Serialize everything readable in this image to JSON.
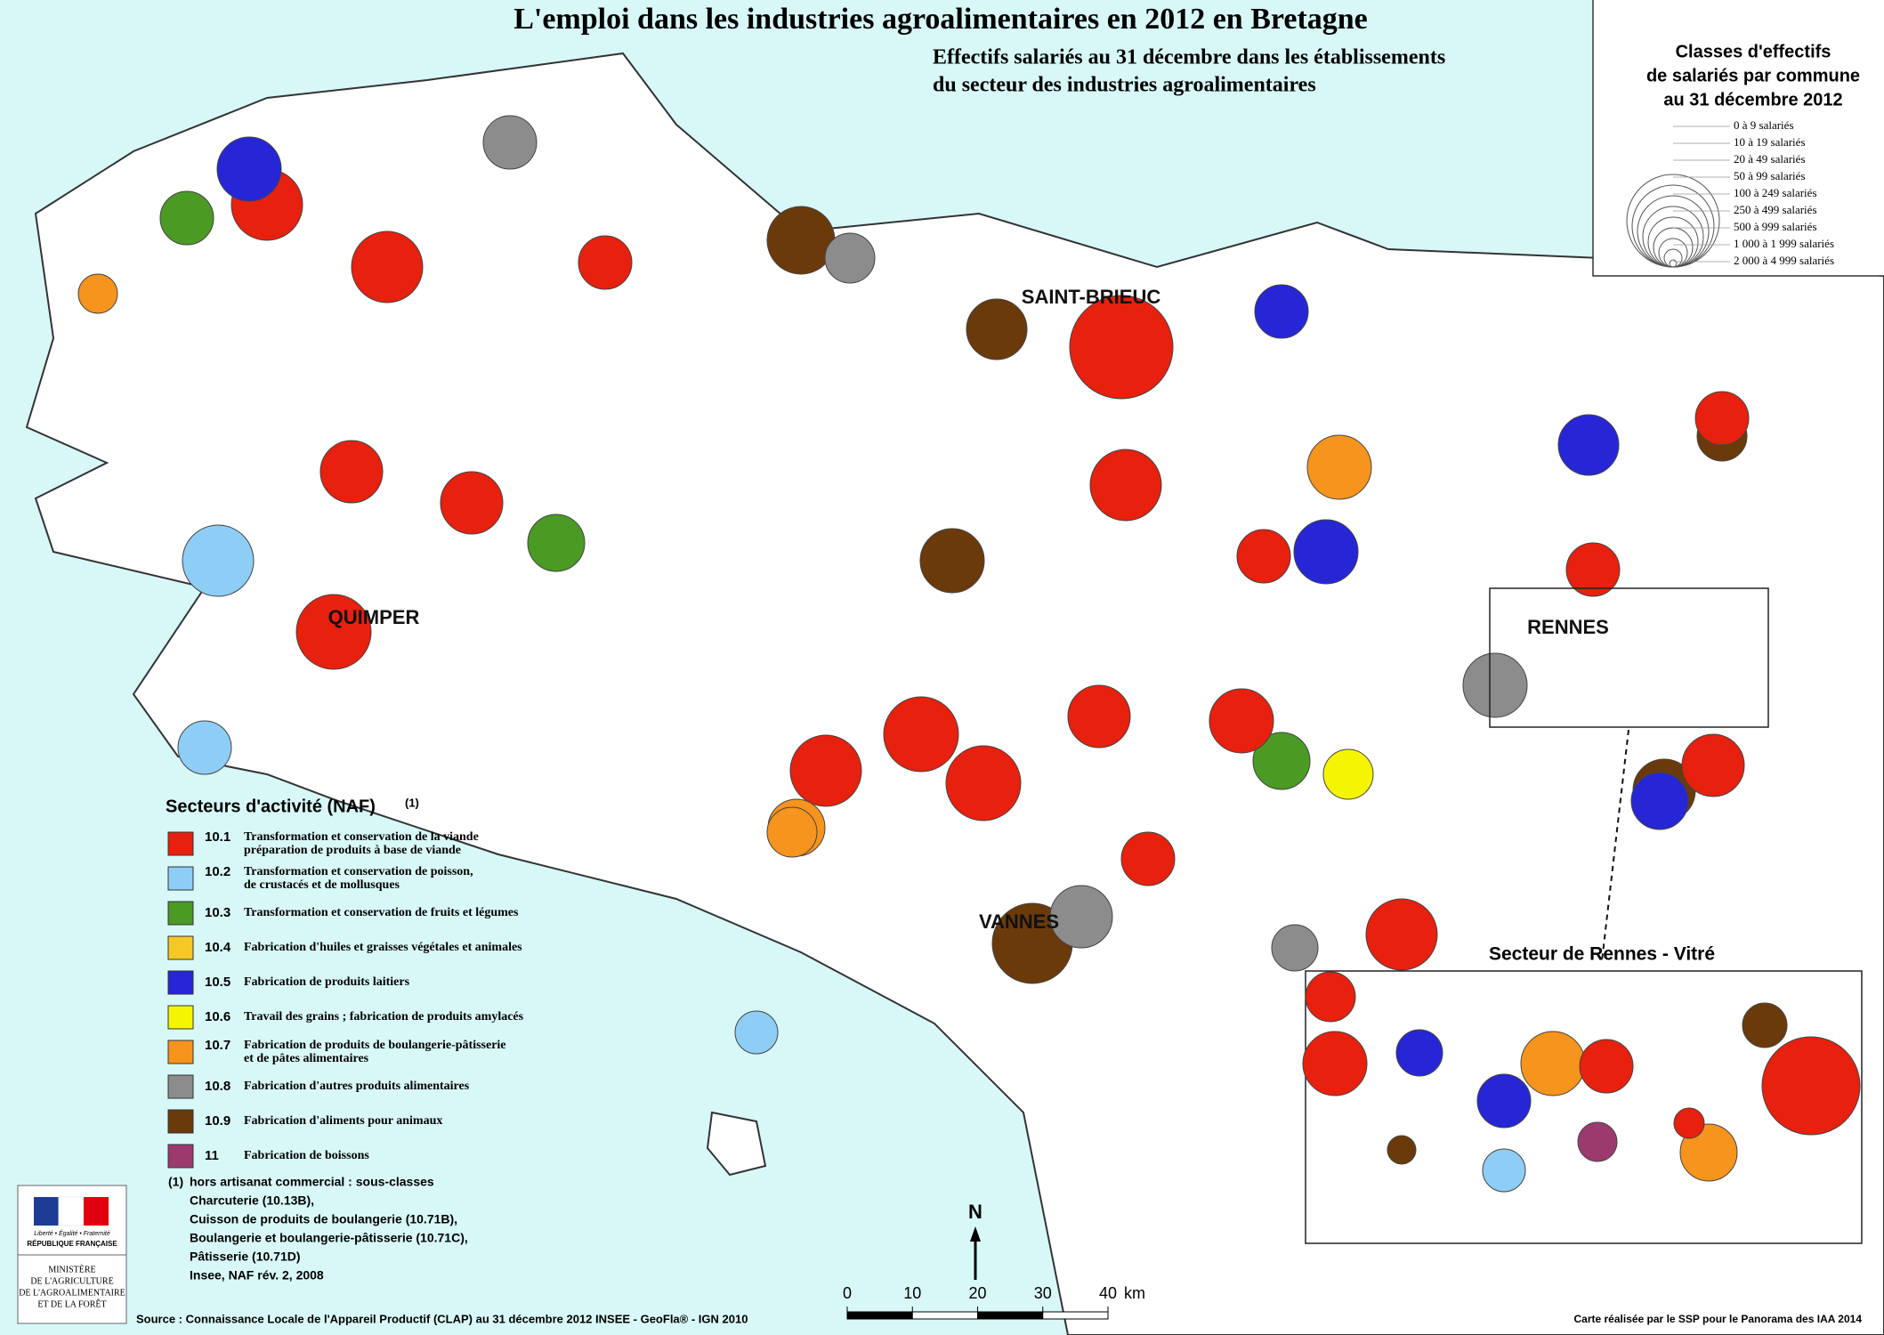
{
  "header": {
    "title": "L'emploi dans les industries agroalimentaires en 2012 en Bretagne",
    "subtitle": [
      "Effectifs salariés au 31 décembre  dans les établissements",
      "du secteur des industries agroalimentaires"
    ]
  },
  "size_legend": {
    "title": [
      "Classes d'effectifs",
      "de salariés par commune",
      "au 31 décembre 2012"
    ],
    "classes": [
      "0 à 9 salariés",
      "10 à 19 salariés",
      "20 à 49 salariés",
      "50 à 99 salariés",
      "100 à 249 salariés",
      "250 à 499 salariés",
      "500 à 999 salariés",
      "1 000 à 1 999 salariés",
      "2 000 à 4 999 salariés"
    ]
  },
  "sector_legend": {
    "title": "Secteurs d'activité (NAF)",
    "note_marker": "(1)",
    "items": [
      {
        "code": "10.1",
        "color": "#e8200e",
        "label": [
          "Transformation et conservation de la viande",
          "préparation de produits à base de viande"
        ]
      },
      {
        "code": "10.2",
        "color": "#8ecdf5",
        "label": [
          "Transformation et conservation de poisson,",
          "de crustacés et de mollusques"
        ]
      },
      {
        "code": "10.3",
        "color": "#4a9a24",
        "label": [
          "Transformation et conservation de fruits et légumes"
        ]
      },
      {
        "code": "10.4",
        "color": "#f5c826",
        "label": [
          "Fabrication d'huiles et graisses végétales et animales"
        ]
      },
      {
        "code": "10.5",
        "color": "#2626d6",
        "label": [
          "Fabrication de produits laitiers"
        ]
      },
      {
        "code": "10.6",
        "color": "#f5f500",
        "label": [
          "Travail des grains ; fabrication de produits amylacés"
        ]
      },
      {
        "code": "10.7",
        "color": "#f7941d",
        "label": [
          "Fabrication de produits de boulangerie-pâtisserie",
          "et de pâtes alimentaires"
        ]
      },
      {
        "code": "10.8",
        "color": "#8c8c8c",
        "label": [
          "Fabrication d'autres produits alimentaires"
        ]
      },
      {
        "code": "10.9",
        "color": "#6b3a0a",
        "label": [
          "Fabrication d'aliments pour animaux"
        ]
      },
      {
        "code": "11",
        "color": "#9c3a6e",
        "label": [
          "Fabrication de boissons"
        ]
      }
    ]
  },
  "footnote": {
    "marker": "(1)",
    "lines": [
      "hors artisanat commercial : sous-classes",
      "Charcuterie (10.13B),",
      "Cuisson de produits de boulangerie (10.71B),",
      "Boulangerie et boulangerie-pâtisserie (10.71C),",
      "Pâtisserie (10.71D)",
      "Insee, NAF rév. 2, 2008"
    ]
  },
  "cities": [
    "SAINT-BRIEUC",
    "QUIMPER",
    "RENNES",
    "VANNES"
  ],
  "inset_title": "Secteur de Rennes - Vitré",
  "north": "N",
  "scale": {
    "ticks": [
      0,
      10,
      20,
      30,
      40
    ],
    "unit": "km"
  },
  "logo": {
    "motto": "Liberté • Égalité • Fraternité",
    "republic": "RÉPUBLIQUE FRANÇAISE",
    "ministry": [
      "MINISTÈRE",
      "DE L'AGRICULTURE",
      "DE L'AGROALIMENTAIRE",
      "ET DE LA FORÊT"
    ]
  },
  "source": "Source : Connaissance Locale de l'Appareil Productif (CLAP) au 31 décembre 2012  INSEE - GeoFla® - IGN 2010",
  "credit": "Carte réalisée par le SSP pour le Panorama des IAA 2014"
}
